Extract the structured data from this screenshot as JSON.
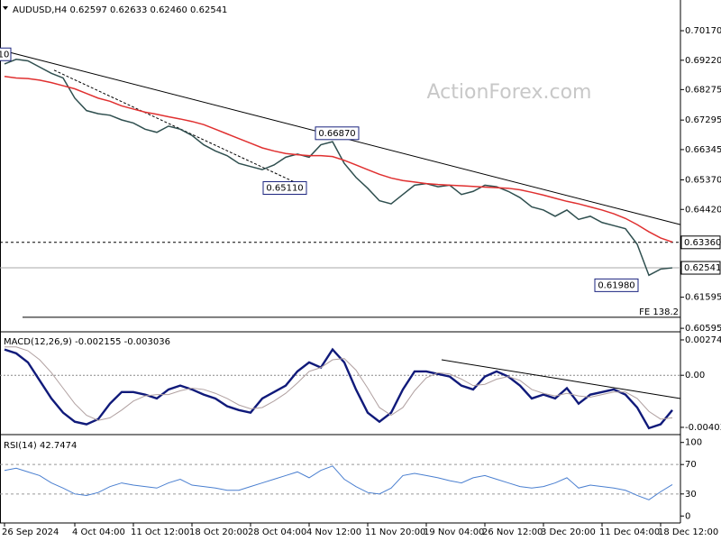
{
  "chart_data": [
    {
      "type": "line",
      "title": "AUDUSD,H4  0.62597 0.62633 0.62460 0.62541",
      "watermark": "ActionForex.com",
      "ylim": [
        0.6054,
        0.711
      ],
      "yticks": [
        {
          "value": 0.7017,
          "label": "0.70170"
        },
        {
          "value": 0.6922,
          "label": "0.69220"
        },
        {
          "value": 0.68275,
          "label": "0.68275"
        },
        {
          "value": 0.67295,
          "label": "0.67295"
        },
        {
          "value": 0.66345,
          "label": "0.66345"
        },
        {
          "value": 0.6537,
          "label": "0.65370"
        },
        {
          "value": 0.6442,
          "label": "0.64420"
        },
        {
          "value": 0.61595,
          "label": "0.61595"
        },
        {
          "value": 0.60595,
          "label": "0.60595"
        }
      ],
      "series": [
        {
          "color": "#2f4f4f",
          "values": [
            0.691,
            0.6925,
            0.692,
            0.69,
            0.688,
            0.6865,
            0.68,
            0.676,
            0.675,
            0.6745,
            0.673,
            0.672,
            0.67,
            0.669,
            0.671,
            0.67,
            0.668,
            0.665,
            0.663,
            0.6615,
            0.659,
            0.658,
            0.657,
            0.6585,
            0.661,
            0.662,
            0.661,
            0.665,
            0.666,
            0.659,
            0.6545,
            0.651,
            0.647,
            0.646,
            0.649,
            0.652,
            0.6525,
            0.6515,
            0.652,
            0.649,
            0.65,
            0.652,
            0.6515,
            0.65,
            0.648,
            0.645,
            0.644,
            0.642,
            0.644,
            0.641,
            0.642,
            0.64,
            0.639,
            0.638,
            0.633,
            0.623,
            0.625,
            0.6254
          ]
        },
        {
          "color": "#e03030",
          "values": [
            0.687,
            0.6865,
            0.6863,
            0.6858,
            0.685,
            0.684,
            0.683,
            0.6815,
            0.68,
            0.679,
            0.6775,
            0.6765,
            0.6755,
            0.6748,
            0.674,
            0.6733,
            0.6725,
            0.6715,
            0.67,
            0.6685,
            0.667,
            0.6655,
            0.664,
            0.663,
            0.6622,
            0.6618,
            0.6615,
            0.6615,
            0.6612,
            0.66,
            0.6585,
            0.657,
            0.6555,
            0.6543,
            0.6535,
            0.653,
            0.6525,
            0.6522,
            0.652,
            0.6518,
            0.6516,
            0.6514,
            0.6512,
            0.651,
            0.6505,
            0.6497,
            0.6488,
            0.6478,
            0.6468,
            0.646,
            0.645,
            0.644,
            0.6428,
            0.6413,
            0.6393,
            0.637,
            0.635,
            0.6337
          ]
        }
      ],
      "hlines": [
        {
          "value": 0.6336,
          "label": "0.63360",
          "style": "dashed"
        },
        {
          "value": 0.62541,
          "label": "0.62541",
          "style": "solid"
        }
      ],
      "annotations": [
        {
          "value": 0.6941,
          "label": "10"
        },
        {
          "value": 0.6687,
          "label": "0.66870"
        },
        {
          "value": 0.6511,
          "label": "0.65110"
        },
        {
          "value": 0.6198,
          "label": "0.61980"
        }
      ],
      "trendlines": [
        {
          "values": [
            0.6948,
            0.6393
          ],
          "style": "solid"
        },
        {
          "values": [
            0.689,
            0.6512
          ],
          "style": "dashed"
        }
      ],
      "level": {
        "value": 0.6095,
        "label": "FE 138.2"
      }
    },
    {
      "type": "line",
      "title": "MACD(12,26,9) -0.002155 -0.003036",
      "ylim": [
        -0.00446,
        0.00323
      ],
      "yticks": [
        0.002743,
        {
          "value": 0,
          "label": "0.00"
        },
        -0.004037
      ],
      "series": [
        {
          "color": "#101a7a",
          "width": 2.4,
          "values": [
            0.002,
            0.0017,
            0.001,
            -0.0004,
            -0.0018,
            -0.0029,
            -0.0036,
            -0.0038,
            -0.0034,
            -0.0022,
            -0.0013,
            -0.0013,
            -0.0015,
            -0.0018,
            -0.0011,
            -0.0008,
            -0.0011,
            -0.0015,
            -0.0018,
            -0.0024,
            -0.0027,
            -0.0029,
            -0.0018,
            -0.0013,
            -0.0008,
            0.0003,
            0.001,
            0.0006,
            0.002,
            0.001,
            -0.0011,
            -0.0029,
            -0.0036,
            -0.0029,
            -0.0011,
            0.0003,
            0.0003,
            0.0001,
            -0.0001,
            -0.0008,
            -0.0011,
            -0.0001,
            0.0003,
            -0.0001,
            -0.0008,
            -0.0018,
            -0.0015,
            -0.0018,
            -0.001,
            -0.0022,
            -0.0015,
            -0.0013,
            -0.0011,
            -0.0015,
            -0.0025,
            -0.0041,
            -0.0038,
            -0.0027
          ]
        },
        {
          "color": "#b0a0a0",
          "width": 1,
          "values": [
            0.0022,
            0.0022,
            0.0019,
            0.0012,
            0.0002,
            -0.001,
            -0.0022,
            -0.0031,
            -0.0035,
            -0.0033,
            -0.0027,
            -0.002,
            -0.0016,
            -0.0015,
            -0.0015,
            -0.0012,
            -0.001,
            -0.0011,
            -0.0014,
            -0.0018,
            -0.0023,
            -0.0026,
            -0.0025,
            -0.002,
            -0.0014,
            -0.0006,
            0.0003,
            0.0006,
            0.0012,
            0.0013,
            0.0004,
            -0.001,
            -0.0025,
            -0.0031,
            -0.0025,
            -0.0012,
            -0.0002,
            0.0002,
            0.0001,
            -0.0003,
            -0.0008,
            -0.0007,
            -0.0003,
            -0.0001,
            -0.0004,
            -0.0011,
            -0.0014,
            -0.0016,
            -0.0014,
            -0.0016,
            -0.0017,
            -0.0015,
            -0.0013,
            -0.0013,
            -0.0018,
            -0.0028,
            -0.0034,
            -0.0033
          ]
        }
      ],
      "trendlines": [
        {
          "values": [
            0.0012,
            -0.0018
          ],
          "style": "solid"
        }
      ]
    },
    {
      "type": "line",
      "title": "RSI(14) 42.7474",
      "ylim": [
        -7,
        107
      ],
      "yticks": [
        0,
        30,
        70,
        100
      ],
      "dashed_levels": [
        30,
        70
      ],
      "categories": [
        "26 Sep 2024",
        null,
        null,
        null,
        null,
        null,
        "4 Oct 04:00",
        null,
        null,
        null,
        null,
        "11 Oct 12:00",
        null,
        null,
        null,
        null,
        "18 Oct 20:00",
        null,
        null,
        null,
        null,
        "28 Oct 04:00",
        null,
        null,
        null,
        null,
        "4 Nov 12:00",
        null,
        null,
        null,
        null,
        "11 Nov 20:00",
        null,
        null,
        null,
        null,
        "19 Nov 04:00",
        null,
        null,
        null,
        null,
        "26 Nov 12:00",
        null,
        null,
        null,
        null,
        "3 Dec 20:00",
        null,
        null,
        null,
        null,
        "11 Dec 04:00",
        null,
        null,
        null,
        null,
        "18 Dec 12:00",
        null
      ],
      "series": [
        {
          "color": "#4a7fd0",
          "width": 1,
          "values": [
            62,
            65,
            60,
            55,
            45,
            38,
            30,
            28,
            32,
            40,
            45,
            42,
            40,
            38,
            45,
            50,
            42,
            40,
            38,
            35,
            35,
            40,
            45,
            50,
            55,
            60,
            52,
            62,
            68,
            50,
            40,
            32,
            30,
            38,
            55,
            58,
            55,
            52,
            48,
            45,
            52,
            55,
            50,
            45,
            40,
            38,
            40,
            45,
            52,
            38,
            42,
            40,
            38,
            35,
            28,
            22,
            33,
            42.7474
          ]
        }
      ]
    }
  ]
}
